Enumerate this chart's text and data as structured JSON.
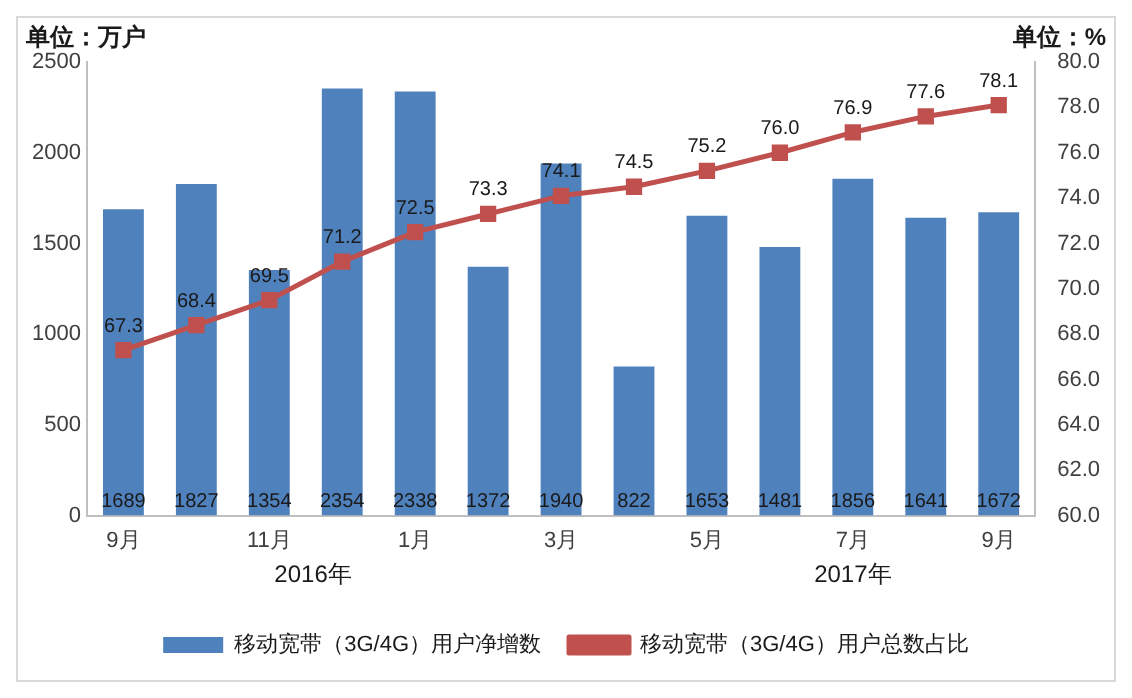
{
  "chart_data": {
    "type": "bar",
    "ylabel": "单位：万户",
    "y2label": "单位：%",
    "categories": [
      "9月",
      null,
      "11月",
      null,
      "1月",
      null,
      "3月",
      null,
      "5月",
      null,
      "7月",
      null,
      "9月"
    ],
    "series": [
      {
        "name": "移动宽带（3G/4G）用户净增数",
        "color": "#4f81bd",
        "values": [
          1689,
          1827,
          1354,
          2354,
          2338,
          1372,
          1940,
          822,
          1653,
          1481,
          1856,
          1641,
          1672
        ],
        "value_labels": [
          "1689",
          "1827",
          "1354",
          "2354",
          "2338",
          "1372",
          "1940",
          "822",
          "1653",
          "1481",
          "1856",
          "1641",
          "1672"
        ]
      },
      {
        "name": "移动宽带（3G/4G）用户总数占比",
        "type": "line",
        "axis": "y2",
        "color": "#c0504d",
        "marker": "square",
        "values": [
          67.3,
          68.4,
          69.5,
          71.2,
          72.5,
          73.3,
          74.1,
          74.5,
          75.2,
          76.0,
          76.9,
          77.6,
          78.1
        ],
        "value_labels": [
          "67.3",
          "68.4",
          "69.5",
          "71.2",
          "72.5",
          "73.3",
          "74.1",
          "74.5",
          "75.2",
          "76.0",
          "76.9",
          "77.6",
          "78.1"
        ]
      }
    ],
    "ylim": [
      0,
      2500
    ],
    "yticks": [
      0,
      500,
      1000,
      1500,
      2000,
      2500
    ],
    "y2lim": [
      60,
      80
    ],
    "y2ticks": [
      {
        "value": 60,
        "label": "60.0"
      },
      {
        "value": 62,
        "label": "62.0"
      },
      {
        "value": 64,
        "label": "64.0"
      },
      {
        "value": 66,
        "label": "66.0"
      },
      {
        "value": 68,
        "label": "68.0"
      },
      {
        "value": 70,
        "label": "70.0"
      },
      {
        "value": 72,
        "label": "72.0"
      },
      {
        "value": 74,
        "label": "74.0"
      },
      {
        "value": 76,
        "label": "76.0"
      },
      {
        "value": 78,
        "label": "78.0"
      },
      {
        "value": 80,
        "label": "80.0"
      }
    ],
    "annotations": [
      "2016年",
      "2017年"
    ],
    "grid": false,
    "legend": "bottom"
  }
}
